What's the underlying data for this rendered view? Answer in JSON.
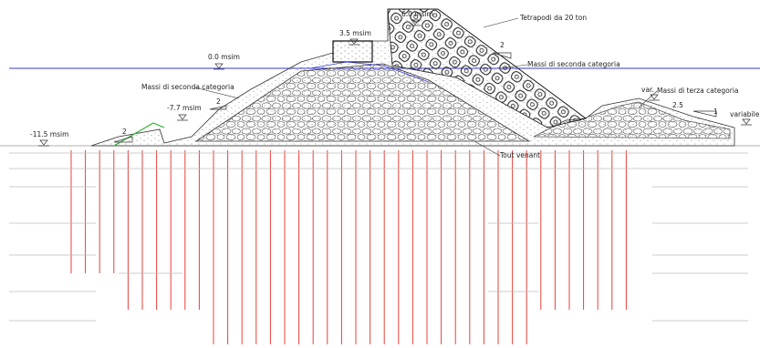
{
  "labels": [
    "6.0 msim",
    "Tetrapodi da 20 ton",
    "3.5 msim",
    "0.0 msim",
    "Massi di seconda categoria",
    "2",
    "Massi di seconda categoria",
    "-7.7 msim",
    "2",
    "-11.5 msim",
    "2",
    "var.",
    "Massi di terza categoria",
    "2.5",
    "1",
    "variabile",
    "Tout venant"
  ]
}
